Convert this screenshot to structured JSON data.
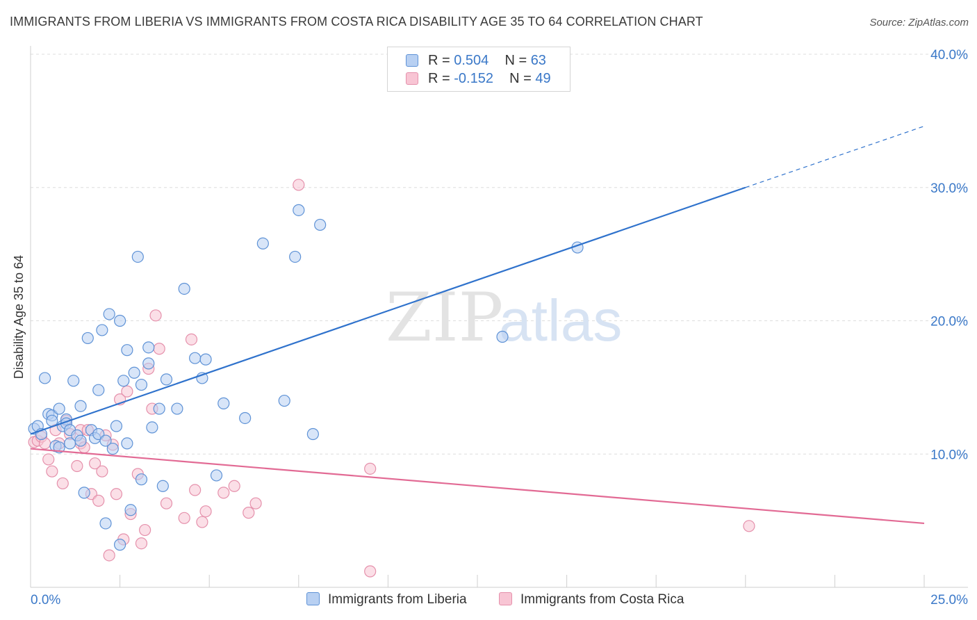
{
  "title": "IMMIGRANTS FROM LIBERIA VS IMMIGRANTS FROM COSTA RICA DISABILITY AGE 35 TO 64 CORRELATION CHART",
  "source": "Source: ZipAtlas.com",
  "watermark": {
    "zip": "ZIP",
    "atlas": "atlas"
  },
  "legend": {
    "r_label": "R =",
    "n_label": "N =",
    "rows": [
      {
        "r": "0.504",
        "n": "63"
      },
      {
        "r": "-0.152",
        "n": "49"
      }
    ]
  },
  "colors": {
    "liberia_fill": "#b8d0f2",
    "liberia_stroke": "#5e92d6",
    "liberia_line": "#2f72cc",
    "costa_fill": "#f8c5d4",
    "costa_stroke": "#e590ab",
    "costa_line": "#e26a94",
    "axis_text": "#3a78c8",
    "grid": "#dddddd"
  },
  "chart_data": {
    "type": "scatter",
    "title": "IMMIGRANTS FROM LIBERIA VS IMMIGRANTS FROM COSTA RICA DISABILITY AGE 35 TO 64 CORRELATION CHART",
    "xlabel": "",
    "ylabel": "Disability Age 35 to 64",
    "xlim": [
      0,
      25
    ],
    "ylim": [
      0,
      40
    ],
    "x_tick_labels": [
      "0.0%",
      "25.0%"
    ],
    "y_ticks": [
      10,
      20,
      30,
      40
    ],
    "y_tick_labels": [
      "10.0%",
      "20.0%",
      "30.0%",
      "40.0%"
    ],
    "legend_position": "top-center",
    "series": [
      {
        "name": "Immigrants from Liberia",
        "r": 0.504,
        "n": 63,
        "trend": {
          "x0": 0,
          "y0": 11.5,
          "x1": 20,
          "y1": 30.0,
          "dashed_to_x": 25,
          "dashed_to_y": 34.6
        },
        "points": [
          [
            0.1,
            11.9
          ],
          [
            0.2,
            12.1
          ],
          [
            0.3,
            11.5
          ],
          [
            0.4,
            15.7
          ],
          [
            0.5,
            13.0
          ],
          [
            0.6,
            12.9
          ],
          [
            0.6,
            12.5
          ],
          [
            0.7,
            10.6
          ],
          [
            0.8,
            10.5
          ],
          [
            0.8,
            13.4
          ],
          [
            0.9,
            12.1
          ],
          [
            1.0,
            12.6
          ],
          [
            1.0,
            12.3
          ],
          [
            1.1,
            11.8
          ],
          [
            1.1,
            10.8
          ],
          [
            1.2,
            15.5
          ],
          [
            1.3,
            11.4
          ],
          [
            1.4,
            13.6
          ],
          [
            1.4,
            11.0
          ],
          [
            1.5,
            7.1
          ],
          [
            1.6,
            18.7
          ],
          [
            1.7,
            11.8
          ],
          [
            1.8,
            11.2
          ],
          [
            1.9,
            14.8
          ],
          [
            1.9,
            11.5
          ],
          [
            2.0,
            19.3
          ],
          [
            2.1,
            4.8
          ],
          [
            2.1,
            11.0
          ],
          [
            2.2,
            20.5
          ],
          [
            2.3,
            10.4
          ],
          [
            2.4,
            12.1
          ],
          [
            2.5,
            20.0
          ],
          [
            2.5,
            3.2
          ],
          [
            2.6,
            15.5
          ],
          [
            2.7,
            17.8
          ],
          [
            2.7,
            10.8
          ],
          [
            2.8,
            5.8
          ],
          [
            2.9,
            16.1
          ],
          [
            3.0,
            24.8
          ],
          [
            3.1,
            8.1
          ],
          [
            3.1,
            15.2
          ],
          [
            3.3,
            16.8
          ],
          [
            3.3,
            18.0
          ],
          [
            3.4,
            12.0
          ],
          [
            3.6,
            13.4
          ],
          [
            3.7,
            7.6
          ],
          [
            3.8,
            15.6
          ],
          [
            4.1,
            13.4
          ],
          [
            4.3,
            22.4
          ],
          [
            4.6,
            17.2
          ],
          [
            4.8,
            15.7
          ],
          [
            4.9,
            17.1
          ],
          [
            5.2,
            8.4
          ],
          [
            5.4,
            13.8
          ],
          [
            6.0,
            12.7
          ],
          [
            6.5,
            25.8
          ],
          [
            7.1,
            14.0
          ],
          [
            7.4,
            24.8
          ],
          [
            7.5,
            28.3
          ],
          [
            7.9,
            11.5
          ],
          [
            8.1,
            27.2
          ],
          [
            15.3,
            25.5
          ],
          [
            13.2,
            18.8
          ]
        ]
      },
      {
        "name": "Immigrants from Costa Rica",
        "r": -0.152,
        "n": 49,
        "trend": {
          "x0": 0,
          "y0": 10.4,
          "x1": 25,
          "y1": 4.8
        },
        "points": [
          [
            0.1,
            10.9
          ],
          [
            0.2,
            11.0
          ],
          [
            0.3,
            11.3
          ],
          [
            0.4,
            10.8
          ],
          [
            0.5,
            9.6
          ],
          [
            0.6,
            8.7
          ],
          [
            0.7,
            11.8
          ],
          [
            0.8,
            10.8
          ],
          [
            0.9,
            7.8
          ],
          [
            1.0,
            12.5
          ],
          [
            1.1,
            11.5
          ],
          [
            1.3,
            9.1
          ],
          [
            1.4,
            11.8
          ],
          [
            1.4,
            10.8
          ],
          [
            1.5,
            10.5
          ],
          [
            1.6,
            11.8
          ],
          [
            1.7,
            7.0
          ],
          [
            1.8,
            9.3
          ],
          [
            1.9,
            6.5
          ],
          [
            2.0,
            8.7
          ],
          [
            2.1,
            11.4
          ],
          [
            2.2,
            2.4
          ],
          [
            2.3,
            10.7
          ],
          [
            2.4,
            7.0
          ],
          [
            2.5,
            14.1
          ],
          [
            2.6,
            3.6
          ],
          [
            2.7,
            14.7
          ],
          [
            2.8,
            5.5
          ],
          [
            3.0,
            8.5
          ],
          [
            3.1,
            3.3
          ],
          [
            3.2,
            4.3
          ],
          [
            3.3,
            16.4
          ],
          [
            3.4,
            13.4
          ],
          [
            3.5,
            20.4
          ],
          [
            3.6,
            17.9
          ],
          [
            3.8,
            6.3
          ],
          [
            4.3,
            5.2
          ],
          [
            4.5,
            18.6
          ],
          [
            4.6,
            7.3
          ],
          [
            4.8,
            4.9
          ],
          [
            4.9,
            5.7
          ],
          [
            5.4,
            7.1
          ],
          [
            5.7,
            7.6
          ],
          [
            6.1,
            5.6
          ],
          [
            6.3,
            6.3
          ],
          [
            7.5,
            30.2
          ],
          [
            9.5,
            8.9
          ],
          [
            9.5,
            1.2
          ],
          [
            20.1,
            4.6
          ]
        ]
      }
    ]
  }
}
